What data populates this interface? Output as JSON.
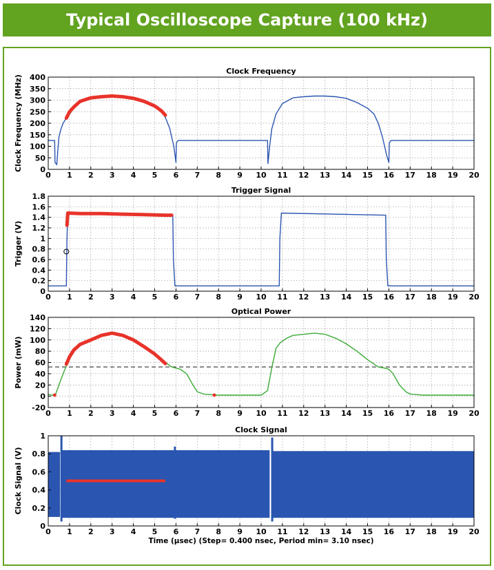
{
  "header": {
    "title": "Typical Oscilloscope Capture (100 kHz)"
  },
  "colors": {
    "banner": "#62a320",
    "blue": "#2a55b0",
    "red": "#e8332a",
    "green": "#3aaa35",
    "threshold": "#555555"
  },
  "chart_data": [
    {
      "type": "line",
      "title": "Clock Frequency",
      "ylabel": "Clock Frequency (MHz)",
      "xlabel": "",
      "xlim": [
        0,
        20
      ],
      "ylim": [
        0,
        400
      ],
      "xticks": [
        0,
        1,
        2,
        3,
        4,
        5,
        6,
        7,
        8,
        9,
        10,
        11,
        12,
        13,
        14,
        15,
        16,
        17,
        18,
        19,
        20
      ],
      "yticks": [
        0,
        50,
        100,
        150,
        200,
        250,
        300,
        350,
        400
      ],
      "grid": true,
      "series": [
        {
          "color": "blue",
          "x": [
            0,
            0.3,
            0.32,
            0.4,
            0.45,
            0.5,
            0.6,
            0.7,
            0.8,
            0.9,
            1.2,
            1.5,
            2,
            2.5,
            3,
            3.5,
            4,
            4.5,
            5,
            5.3,
            5.5,
            5.7,
            5.9,
            6.0,
            6.02,
            6.1,
            10.3,
            10.32,
            10.4,
            10.5,
            10.7,
            11,
            11.5,
            12,
            12.5,
            13,
            13.5,
            14,
            14.5,
            15,
            15.3,
            15.5,
            15.7,
            15.9,
            16.0,
            16.02,
            16.1,
            20
          ],
          "y": [
            125,
            125,
            30,
            20,
            80,
            140,
            175,
            200,
            215,
            225,
            265,
            295,
            310,
            315,
            318,
            315,
            308,
            295,
            275,
            255,
            225,
            180,
            100,
            30,
            115,
            125,
            125,
            25,
            100,
            175,
            240,
            285,
            310,
            315,
            318,
            318,
            315,
            308,
            290,
            265,
            240,
            200,
            140,
            60,
            30,
            115,
            125,
            125
          ]
        },
        {
          "color": "red",
          "x": [
            0.85,
            1.0,
            1.2,
            1.5,
            2.0,
            2.5,
            3.0,
            3.5,
            4.0,
            4.5,
            5.0,
            5.3,
            5.5
          ],
          "y": [
            222,
            250,
            270,
            295,
            310,
            315,
            318,
            315,
            308,
            295,
            275,
            255,
            235
          ]
        }
      ]
    },
    {
      "type": "line",
      "title": "Trigger Signal",
      "ylabel": "Trigger (V)",
      "xlabel": "",
      "xlim": [
        0,
        20
      ],
      "ylim": [
        0,
        1.8
      ],
      "xticks": [
        0,
        1,
        2,
        3,
        4,
        5,
        6,
        7,
        8,
        9,
        10,
        11,
        12,
        13,
        14,
        15,
        16,
        17,
        18,
        19,
        20
      ],
      "yticks": [
        0,
        0.2,
        0.4,
        0.6,
        0.8,
        1,
        1.2,
        1.4,
        1.6,
        1.8
      ],
      "grid": true,
      "series": [
        {
          "color": "blue",
          "x": [
            0,
            0.85,
            0.88,
            0.92,
            5.85,
            5.88,
            5.95,
            10.85,
            10.88,
            10.95,
            15.85,
            15.88,
            15.95,
            20
          ],
          "y": [
            0.1,
            0.1,
            1.0,
            1.48,
            1.44,
            0.6,
            0.1,
            0.1,
            1.0,
            1.48,
            1.44,
            0.6,
            0.1,
            0.1
          ]
        },
        {
          "color": "red",
          "x": [
            0.88,
            0.92,
            1.5,
            2.5,
            3.5,
            4.5,
            5.5,
            5.8
          ],
          "y": [
            1.25,
            1.48,
            1.47,
            1.47,
            1.46,
            1.45,
            1.44,
            1.44
          ]
        }
      ],
      "marker": {
        "x": 0.85,
        "y": 0.75
      }
    },
    {
      "type": "line",
      "title": "Optical Power",
      "ylabel": "Power (mW)",
      "xlabel": "",
      "xlim": [
        0,
        20
      ],
      "ylim": [
        -20,
        140
      ],
      "xticks": [
        0,
        1,
        2,
        3,
        4,
        5,
        6,
        7,
        8,
        9,
        10,
        11,
        12,
        13,
        14,
        15,
        16,
        17,
        18,
        19,
        20
      ],
      "yticks": [
        -20,
        0,
        20,
        40,
        60,
        80,
        100,
        120,
        140
      ],
      "grid": true,
      "threshold": 52,
      "series": [
        {
          "color": "green",
          "x": [
            0,
            0.2,
            0.35,
            0.5,
            0.7,
            0.9,
            1.2,
            1.5,
            2,
            2.5,
            3,
            3.5,
            4,
            4.5,
            5,
            5.5,
            5.8,
            6.0,
            6.2,
            6.5,
            6.8,
            7.0,
            7.3,
            7.6,
            8,
            9,
            10,
            10.3,
            10.5,
            10.7,
            10.9,
            11.2,
            11.5,
            12,
            12.5,
            13,
            13.5,
            14,
            14.5,
            15,
            15.5,
            15.8,
            16.0,
            16.2,
            16.5,
            16.8,
            17.0,
            17.3,
            17.6,
            18,
            19,
            20
          ],
          "y": [
            3,
            2,
            4,
            20,
            40,
            58,
            80,
            92,
            100,
            108,
            112,
            108,
            100,
            88,
            75,
            60,
            52,
            50,
            48,
            40,
            20,
            8,
            4,
            3,
            2,
            2,
            2,
            10,
            50,
            85,
            95,
            103,
            108,
            110,
            112,
            110,
            103,
            93,
            80,
            65,
            52,
            50,
            48,
            40,
            20,
            8,
            4,
            3,
            2,
            2,
            2,
            2
          ]
        },
        {
          "color": "red",
          "x": [
            0.85,
            1.0,
            1.2,
            1.5,
            2,
            2.5,
            3,
            3.5,
            4,
            4.5,
            5,
            5.3,
            5.5
          ],
          "y": [
            57,
            70,
            82,
            92,
            100,
            108,
            112,
            108,
            100,
            88,
            75,
            65,
            58
          ]
        }
      ],
      "points": [
        {
          "x": 0.3,
          "y": 2
        },
        {
          "x": 7.8,
          "y": 2
        }
      ]
    },
    {
      "type": "line",
      "title": "Clock Signal",
      "ylabel": "Clock Signal (V)",
      "xlabel": "Time (µsec) (Step= 0.400 nsec, Period min= 3.10 nsec)",
      "xlim": [
        0,
        20
      ],
      "ylim": [
        0,
        1
      ],
      "xticks": [
        0,
        1,
        2,
        3,
        4,
        5,
        6,
        7,
        8,
        9,
        10,
        11,
        12,
        13,
        14,
        15,
        16,
        17,
        18,
        19,
        20
      ],
      "yticks": [
        0,
        0.2,
        0.4,
        0.6,
        0.8,
        1
      ],
      "grid": true,
      "bands": [
        {
          "x0": 0.0,
          "x1": 0.55,
          "ylo": 0.1,
          "yhi": 0.82
        },
        {
          "x0": 0.6,
          "x1": 10.4,
          "ylo": 0.09,
          "yhi": 0.84
        },
        {
          "x0": 10.5,
          "x1": 20.0,
          "ylo": 0.09,
          "yhi": 0.83
        }
      ],
      "spikes": [
        {
          "x": 0.62,
          "ylo": 0.05,
          "yhi": 1.0
        },
        {
          "x": 10.52,
          "ylo": 0.05,
          "yhi": 0.98
        },
        {
          "x": 5.95,
          "ylo": 0.08,
          "yhi": 0.88
        }
      ],
      "level": {
        "x0": 0.85,
        "x1": 5.5,
        "y": 0.5
      }
    }
  ]
}
